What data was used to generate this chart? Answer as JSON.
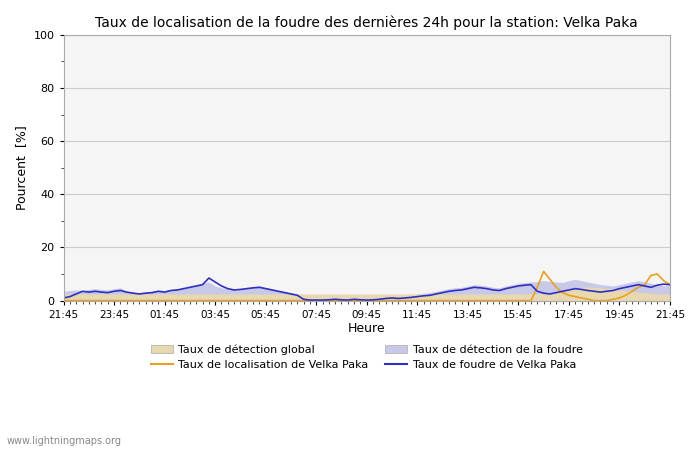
{
  "title": "Taux de localisation de la foudre des dernières 24h pour la station: Velka Paka",
  "xlabel": "Heure",
  "ylabel": "Pourcent  [%]",
  "ylim": [
    0,
    100
  ],
  "yticks": [
    0,
    20,
    40,
    60,
    80,
    100
  ],
  "yticks_minor": [
    10,
    30,
    50,
    70,
    90
  ],
  "xtick_labels": [
    "21:45",
    "23:45",
    "01:45",
    "03:45",
    "05:45",
    "07:45",
    "09:45",
    "11:45",
    "13:45",
    "15:45",
    "17:45",
    "19:45",
    "21:45"
  ],
  "background_color": "#ffffff",
  "plot_bg_color": "#f5f5f5",
  "grid_color": "#cccccc",
  "watermark": "www.lightningmaps.org",
  "legend_entries": [
    {
      "label": "Taux de détection global",
      "type": "fill",
      "color": "#e8d8b0"
    },
    {
      "label": "Taux de localisation de Velka Paka",
      "type": "line",
      "color": "#e8a020"
    },
    {
      "label": "Taux de détection de la foudre",
      "type": "fill",
      "color": "#c8c8e8"
    },
    {
      "label": "Taux de foudre de Velka Paka",
      "type": "line",
      "color": "#3030c0"
    }
  ],
  "n_points": 97,
  "detection_global_fill": [
    2.5,
    2.5,
    2.5,
    2.5,
    2.5,
    2.5,
    2.5,
    2.5,
    2.5,
    2.5,
    2.5,
    2.5,
    2.5,
    2.5,
    2.5,
    2.5,
    2.5,
    2.5,
    2.5,
    2.5,
    2.5,
    2.5,
    2.5,
    2.5,
    2.5,
    2.5,
    2.5,
    2.5,
    2.5,
    2.5,
    2.5,
    2.5,
    2.5,
    2.5,
    2.5,
    2.5,
    2.5,
    2.5,
    2.5,
    2.5,
    2.5,
    2.5,
    2.5,
    2.5,
    2.5,
    2.5,
    2.5,
    2.5,
    2.5,
    2.5,
    2.5,
    2.5,
    2.5,
    2.5,
    2.5,
    2.5,
    2.5,
    2.5,
    2.5,
    2.5,
    2.5,
    2.5,
    2.5,
    2.5,
    2.5,
    2.5,
    2.5,
    2.5,
    2.5,
    2.5,
    2.5,
    2.5,
    2.5,
    2.5,
    2.5,
    2.5,
    2.8,
    3.0,
    3.2,
    3.5,
    4.0,
    4.5,
    5.0,
    5.2,
    5.0,
    4.8,
    4.5,
    4.2,
    4.0,
    3.8,
    3.5,
    3.2,
    3.0,
    2.8,
    2.5,
    2.5,
    2.5
  ],
  "detection_foudre_fill": [
    3.5,
    3.8,
    4.0,
    3.8,
    4.2,
    4.5,
    4.2,
    4.0,
    4.5,
    4.8,
    3.5,
    3.2,
    3.0,
    3.2,
    3.5,
    4.0,
    3.8,
    4.2,
    4.5,
    4.8,
    5.2,
    5.8,
    6.5,
    7.0,
    5.5,
    4.8,
    4.5,
    4.2,
    4.5,
    4.8,
    5.2,
    5.5,
    5.0,
    4.5,
    4.0,
    3.5,
    3.0,
    2.5,
    2.0,
    1.5,
    1.2,
    1.0,
    1.2,
    1.5,
    1.2,
    1.0,
    1.5,
    1.2,
    1.0,
    1.2,
    1.5,
    1.8,
    2.0,
    1.8,
    2.0,
    2.2,
    2.5,
    2.8,
    3.0,
    3.5,
    4.0,
    4.5,
    4.8,
    5.0,
    5.5,
    6.0,
    5.8,
    5.5,
    5.0,
    4.8,
    5.5,
    6.0,
    6.5,
    6.8,
    7.0,
    7.2,
    7.5,
    7.2,
    7.0,
    6.8,
    7.5,
    8.0,
    7.5,
    7.0,
    6.5,
    6.0,
    5.8,
    5.5,
    6.0,
    6.5,
    7.0,
    7.5,
    7.0,
    6.5,
    6.0,
    5.5,
    5.8
  ],
  "localisation_velka_line": [
    0.0,
    0.0,
    0.0,
    0.0,
    0.0,
    0.0,
    0.0,
    0.0,
    0.0,
    0.0,
    0.0,
    0.0,
    0.0,
    0.0,
    0.0,
    0.0,
    0.0,
    0.0,
    0.0,
    0.0,
    0.0,
    0.0,
    0.0,
    0.0,
    0.0,
    0.0,
    0.0,
    0.0,
    0.0,
    0.0,
    0.0,
    0.0,
    0.0,
    0.0,
    0.0,
    0.0,
    0.0,
    0.0,
    0.0,
    0.0,
    0.0,
    0.0,
    0.0,
    0.0,
    0.0,
    0.0,
    0.0,
    0.0,
    0.0,
    0.0,
    0.0,
    0.0,
    0.0,
    0.0,
    0.0,
    0.0,
    0.0,
    0.0,
    0.0,
    0.0,
    0.0,
    0.0,
    0.0,
    0.0,
    0.0,
    0.0,
    0.0,
    0.0,
    0.0,
    0.0,
    0.0,
    0.0,
    0.0,
    0.0,
    0.0,
    5.0,
    11.0,
    8.0,
    5.0,
    3.0,
    2.0,
    1.5,
    1.0,
    0.5,
    0.0,
    0.0,
    0.0,
    0.5,
    1.0,
    2.0,
    3.5,
    5.0,
    6.0,
    9.5,
    10.0,
    7.5,
    6.0
  ],
  "foudre_velka_line": [
    1.0,
    1.5,
    2.5,
    3.5,
    3.2,
    3.5,
    3.2,
    3.0,
    3.5,
    3.8,
    3.2,
    2.8,
    2.5,
    2.8,
    3.0,
    3.5,
    3.2,
    3.8,
    4.0,
    4.5,
    5.0,
    5.5,
    6.0,
    8.5,
    7.0,
    5.5,
    4.5,
    4.0,
    4.2,
    4.5,
    4.8,
    5.0,
    4.5,
    4.0,
    3.5,
    3.0,
    2.5,
    2.0,
    0.5,
    0.2,
    0.2,
    0.2,
    0.3,
    0.5,
    0.3,
    0.2,
    0.5,
    0.3,
    0.2,
    0.3,
    0.5,
    0.8,
    1.0,
    0.8,
    1.0,
    1.2,
    1.5,
    1.8,
    2.0,
    2.5,
    3.0,
    3.5,
    3.8,
    4.0,
    4.5,
    5.0,
    4.8,
    4.5,
    4.0,
    3.8,
    4.5,
    5.0,
    5.5,
    5.8,
    6.0,
    3.5,
    2.8,
    2.5,
    3.0,
    3.5,
    4.0,
    4.5,
    4.2,
    3.8,
    3.5,
    3.2,
    3.5,
    3.8,
    4.5,
    5.0,
    5.5,
    6.0,
    5.5,
    5.0,
    5.8,
    6.2,
    6.0
  ]
}
